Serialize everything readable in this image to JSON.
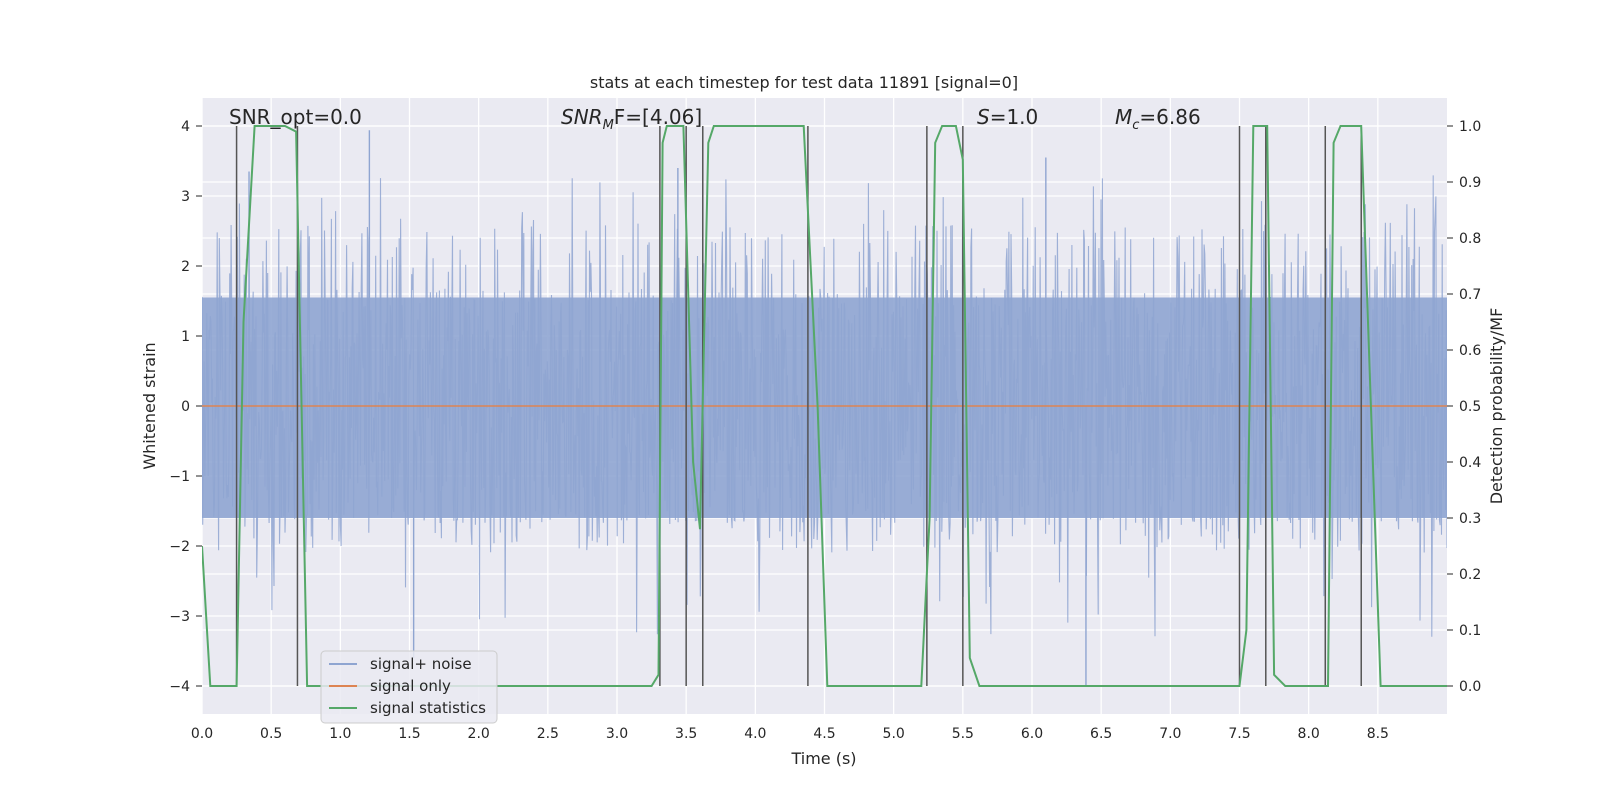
{
  "chart_data": {
    "type": "line",
    "title": "stats at each timestep for test data 11891 [signal=0]",
    "xlabel": "Time (s)",
    "ylabel": "Whitened strain",
    "y2label": "Detection probability/MF",
    "xlim": [
      0.0,
      9.0
    ],
    "ylim": [
      -4.4,
      4.4
    ],
    "y2lim": [
      -0.05,
      1.05
    ],
    "xticks": [
      0.0,
      0.5,
      1.0,
      1.5,
      2.0,
      2.5,
      3.0,
      3.5,
      4.0,
      4.5,
      5.0,
      5.5,
      6.0,
      6.5,
      7.0,
      7.5,
      8.0,
      8.5
    ],
    "xtick_labels": [
      "0.0",
      "0.5",
      "1.0",
      "1.5",
      "2.0",
      "2.5",
      "3.0",
      "3.5",
      "4.0",
      "4.5",
      "5.0",
      "5.5",
      "6.0",
      "6.5",
      "7.0",
      "7.5",
      "8.0",
      "8.5"
    ],
    "yticks": [
      -4,
      -3,
      -2,
      -1,
      0,
      1,
      2,
      3,
      4
    ],
    "ytick_labels": [
      "−4",
      "−3",
      "−2",
      "−1",
      "0",
      "1",
      "2",
      "3",
      "4"
    ],
    "y2ticks": [
      0.0,
      0.1,
      0.2,
      0.3,
      0.4,
      0.5,
      0.6,
      0.7,
      0.8,
      0.9,
      1.0
    ],
    "y2tick_labels": [
      "0.0",
      "0.1",
      "0.2",
      "0.3",
      "0.4",
      "0.5",
      "0.6",
      "0.7",
      "0.8",
      "0.9",
      "1.0"
    ],
    "grid": true,
    "annotations": {
      "snr_opt": "SNR_opt=0.0",
      "snr_mf_base": "SNR",
      "snr_mf_sub": "M",
      "snr_mf_rest": "F=[4.06]",
      "s_italic": "S",
      "s_rest": "=1.0",
      "mc_italic": "M",
      "mc_sub": "c",
      "mc_rest": "=6.86"
    },
    "legend": {
      "placement": "lower-left",
      "entries": [
        "signal+ noise",
        "signal only",
        "signal statistics"
      ]
    },
    "series": [
      {
        "name": "signal+ noise",
        "axis": "left",
        "color": "#8fa5d1",
        "kind": "noise",
        "x_range": [
          0.0,
          9.0
        ],
        "typical_range": [
          -2.0,
          2.5
        ],
        "peaks": [
          {
            "x": 1.21,
            "y": 3.94
          },
          {
            "x": 3.44,
            "y": 3.4
          },
          {
            "x": 6.39,
            "y": -4.0
          },
          {
            "x": 1.53,
            "y": -3.6
          },
          {
            "x": 6.1,
            "y": 3.55
          },
          {
            "x": 0.34,
            "y": 3.35
          }
        ]
      },
      {
        "name": "signal only",
        "axis": "left",
        "color": "#dd8452",
        "x": [
          0.0,
          9.0
        ],
        "y": [
          0.0,
          0.0
        ]
      },
      {
        "name": "signal statistics",
        "axis": "right",
        "color": "#55a868",
        "x": [
          0.0,
          0.06,
          0.12,
          0.25,
          0.3,
          0.38,
          0.45,
          0.6,
          0.68,
          0.76,
          0.83,
          1.0,
          2.0,
          3.25,
          3.3,
          3.33,
          3.36,
          3.4,
          3.48,
          3.55,
          3.6,
          3.66,
          3.7,
          3.75,
          4.35,
          4.45,
          4.52,
          5.2,
          5.26,
          5.3,
          5.35,
          5.45,
          5.5,
          5.55,
          5.62,
          5.7,
          7.5,
          7.55,
          7.6,
          7.7,
          7.75,
          7.83,
          8.1,
          8.14,
          8.18,
          8.23,
          8.38,
          8.45,
          8.52,
          9.0
        ],
        "y": [
          0.25,
          0.0,
          0.0,
          0.0,
          0.65,
          1.0,
          1.0,
          1.0,
          0.99,
          0.0,
          0.0,
          0.0,
          0.0,
          0.0,
          0.02,
          0.97,
          1.0,
          1.0,
          1.0,
          0.4,
          0.28,
          0.97,
          1.0,
          1.0,
          1.0,
          0.5,
          0.0,
          0.0,
          0.3,
          0.97,
          1.0,
          1.0,
          0.94,
          0.05,
          0.0,
          0.0,
          0.0,
          0.1,
          1.0,
          1.0,
          0.02,
          0.0,
          0.0,
          0.0,
          0.97,
          1.0,
          1.0,
          0.5,
          0.0,
          0.0
        ]
      }
    ],
    "vertical_markers": {
      "color": "#555555",
      "axis": "right",
      "markers": [
        {
          "x": 0.25,
          "y_top": 1.0
        },
        {
          "x": 0.69,
          "y_top": 1.0
        },
        {
          "x": 3.31,
          "y_top": 1.0
        },
        {
          "x": 3.5,
          "y_top": 1.0
        },
        {
          "x": 3.62,
          "y_top": 1.0
        },
        {
          "x": 4.38,
          "y_top": 1.0
        },
        {
          "x": 5.24,
          "y_top": 1.0
        },
        {
          "x": 5.5,
          "y_top": 1.0
        },
        {
          "x": 7.5,
          "y_top": 1.0
        },
        {
          "x": 7.69,
          "y_top": 1.0
        },
        {
          "x": 8.12,
          "y_top": 1.0
        },
        {
          "x": 8.38,
          "y_top": 1.0
        }
      ]
    }
  }
}
